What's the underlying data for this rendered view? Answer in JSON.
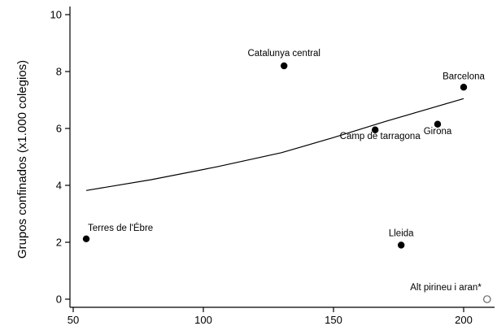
{
  "chart_data": {
    "type": "scatter",
    "title": "",
    "xlabel": "",
    "ylabel": "Grupos confinados (x1.000 colegios)",
    "xlim": [
      50,
      210
    ],
    "ylim": [
      0,
      10
    ],
    "xticks": [
      50,
      100,
      150,
      200
    ],
    "yticks": [
      0,
      2,
      4,
      6,
      8,
      10
    ],
    "grid": false,
    "points": [
      {
        "label": "Catalunya central",
        "x": 131,
        "y": 8.2,
        "filled": true
      },
      {
        "label": "Barcelona",
        "x": 200,
        "y": 7.45,
        "filled": true
      },
      {
        "label": "Camp de tarragona",
        "x": 166,
        "y": 5.95,
        "filled": true
      },
      {
        "label": "Girona",
        "x": 190,
        "y": 6.15,
        "filled": true
      },
      {
        "label": "Terres de l'Ébre",
        "x": 55,
        "y": 2.12,
        "filled": true
      },
      {
        "label": "Lleida",
        "x": 176,
        "y": 1.9,
        "filled": true
      },
      {
        "label": "Alt pirineu i aran*",
        "x": 209,
        "y": 0.0,
        "filled": false
      }
    ],
    "fit_line": [
      {
        "x": 55,
        "y": 3.82
      },
      {
        "x": 80,
        "y": 4.2
      },
      {
        "x": 105,
        "y": 4.65
      },
      {
        "x": 130,
        "y": 5.15
      },
      {
        "x": 150,
        "y": 5.68
      },
      {
        "x": 170,
        "y": 6.25
      },
      {
        "x": 185,
        "y": 6.65
      },
      {
        "x": 200,
        "y": 7.05
      }
    ]
  }
}
